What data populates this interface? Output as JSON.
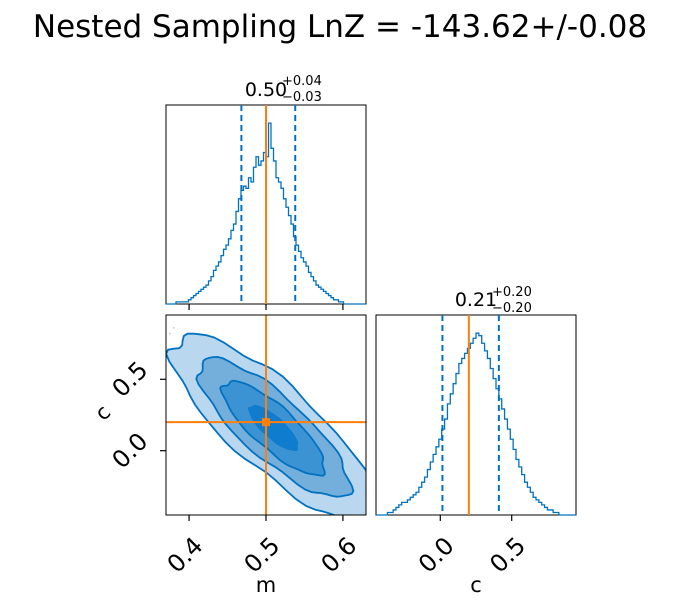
{
  "colors": {
    "primary": "#0072c1",
    "truth": "#ff7f0e",
    "fill_light": "#b9d7ee",
    "fill_mid": "#74afdc",
    "fill_dark": "#0f7ccd"
  },
  "chart_data": {
    "type": "corner",
    "title": "Nested Sampling LnZ = -143.62+/-0.08",
    "parameters": [
      {
        "name": "m",
        "median": 0.5,
        "err_plus": "+0.04",
        "err_minus": "−0.03",
        "title_value": "0.50",
        "quantile_lower": 0.468,
        "quantile_upper": 0.538,
        "truth": 0.5,
        "range": [
          0.37,
          0.63
        ],
        "tick_values": [
          0.4,
          0.5,
          0.6
        ],
        "tick_labels": [
          "0.4",
          "0.5",
          "0.6"
        ],
        "axis_label": "m"
      },
      {
        "name": "c",
        "median": 0.21,
        "err_plus": "+0.20",
        "err_minus": "−0.20",
        "title_value": "0.21",
        "quantile_lower": 0.015,
        "quantile_upper": 0.41,
        "truth": 0.2,
        "range": [
          -0.45,
          0.95
        ],
        "tick_values": [
          0.0,
          0.5
        ],
        "tick_labels": [
          "0.0",
          "0.5"
        ],
        "axis_label": "c"
      }
    ],
    "hist_m": {
      "range": [
        0.37,
        0.63
      ],
      "counts": [
        0,
        0,
        0,
        0,
        1,
        1,
        1,
        1,
        1,
        2,
        3,
        4,
        5,
        6,
        7,
        8,
        9,
        11,
        13,
        16,
        18,
        20,
        23,
        26,
        28,
        31,
        35,
        38,
        44,
        50,
        54,
        56,
        55,
        60,
        58,
        65,
        70,
        66,
        68,
        72,
        70,
        86,
        74,
        68,
        60,
        58,
        55,
        50,
        46,
        42,
        38,
        32,
        28,
        25,
        22,
        20,
        18,
        15,
        13,
        11,
        9,
        8,
        7,
        6,
        5,
        4,
        3,
        2,
        2,
        1,
        1,
        0,
        0,
        0,
        0,
        0,
        0,
        0,
        0,
        0
      ]
    },
    "hist_c": {
      "range": [
        -0.45,
        0.95
      ],
      "counts": [
        0,
        0,
        0,
        0,
        1,
        1,
        2,
        3,
        4,
        5,
        5,
        6,
        7,
        8,
        9,
        11,
        13,
        15,
        18,
        21,
        24,
        27,
        30,
        34,
        38,
        44,
        48,
        52,
        56,
        60,
        62,
        64,
        66,
        68,
        70,
        72,
        71,
        68,
        65,
        62,
        58,
        54,
        50,
        46,
        42,
        38,
        34,
        30,
        26,
        22,
        19,
        16,
        13,
        11,
        9,
        7,
        6,
        5,
        4,
        3,
        2,
        2,
        1,
        1,
        0,
        0,
        0,
        0,
        0,
        0
      ]
    },
    "joint": {
      "x_param": "m",
      "y_param": "c",
      "center": [
        0.51,
        0.16
      ],
      "correlation": -0.85,
      "levels": [
        "0.5 sigma",
        "1 sigma",
        "1.5 sigma",
        "2 sigma"
      ]
    }
  }
}
